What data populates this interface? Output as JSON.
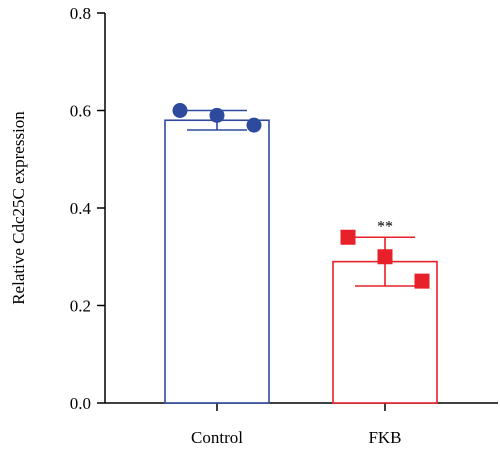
{
  "chart_data": {
    "type": "bar",
    "title": "",
    "xlabel": "",
    "ylabel": "Relative Cdc25C expression",
    "ylim": [
      0,
      0.8
    ],
    "yticks": [
      "0.0",
      "0.2",
      "0.4",
      "0.6",
      "0.8"
    ],
    "grid": false,
    "categories": [
      "Control",
      "FKB"
    ],
    "series": [
      {
        "values": [
          0.58,
          0.29
        ],
        "errors": [
          0.02,
          0.05
        ],
        "points": [
          [
            0.6,
            0.59,
            0.57
          ],
          [
            0.34,
            0.3,
            0.25
          ]
        ],
        "markers": [
          "circle",
          "square"
        ],
        "colors": [
          "#2e4a9e",
          "#e8202a"
        ]
      }
    ],
    "annotations": [
      {
        "category": "FKB",
        "text": "**"
      }
    ]
  }
}
